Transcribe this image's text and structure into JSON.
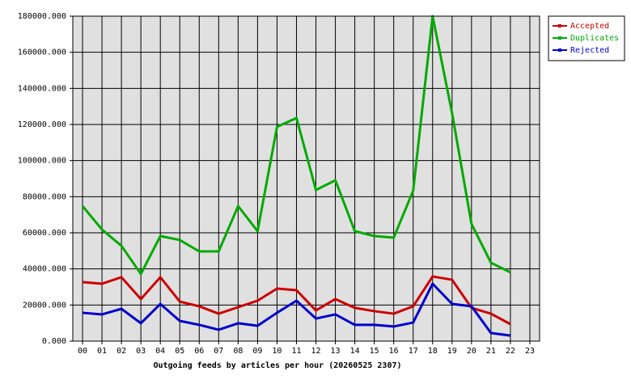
{
  "chart_data": {
    "type": "line",
    "title": "Outgoing feeds by articles per hour (20260525 2307)",
    "categories": [
      "00",
      "01",
      "02",
      "03",
      "04",
      "05",
      "06",
      "07",
      "08",
      "09",
      "10",
      "11",
      "12",
      "13",
      "14",
      "15",
      "16",
      "17",
      "18",
      "19",
      "20",
      "21",
      "22",
      "23"
    ],
    "series": [
      {
        "name": "Accepted",
        "color": "#cc0000",
        "values": [
          32700,
          31800,
          35400,
          23300,
          35400,
          21900,
          19300,
          15200,
          18800,
          22400,
          29100,
          28200,
          17000,
          23300,
          18400,
          16600,
          15200,
          19300,
          35800,
          34000,
          18400,
          15200,
          9400,
          null
        ]
      },
      {
        "name": "Duplicates",
        "color": "#00aa00",
        "values": [
          74800,
          61800,
          52800,
          37200,
          58200,
          56000,
          49700,
          49700,
          74800,
          60900,
          118700,
          123600,
          83700,
          89100,
          60900,
          58200,
          57300,
          83300,
          180000,
          126300,
          64900,
          43400,
          38100,
          null
        ]
      },
      {
        "name": "Rejected",
        "color": "#0000cc",
        "values": [
          15700,
          14800,
          17900,
          9900,
          20600,
          11200,
          9000,
          6300,
          9900,
          8500,
          15700,
          22400,
          12500,
          14800,
          9000,
          9000,
          8100,
          10300,
          31800,
          20600,
          19300,
          4500,
          3100,
          null
        ]
      }
    ],
    "ylim": [
      0,
      180000
    ],
    "yticks": [
      {
        "value": 0,
        "label": "0.000"
      },
      {
        "value": 20000,
        "label": "20000.000"
      },
      {
        "value": 40000,
        "label": "40000.000"
      },
      {
        "value": 60000,
        "label": "60000.000"
      },
      {
        "value": 80000,
        "label": "80000.000"
      },
      {
        "value": 100000,
        "label": "100000.000"
      },
      {
        "value": 120000,
        "label": "120000.000"
      },
      {
        "value": 140000,
        "label": "140000.000"
      },
      {
        "value": 160000,
        "label": "160000.000"
      },
      {
        "value": 180000,
        "label": "180000.000"
      }
    ],
    "grid": true,
    "legend": "top-right",
    "plot_background": "#e0e0e0"
  }
}
